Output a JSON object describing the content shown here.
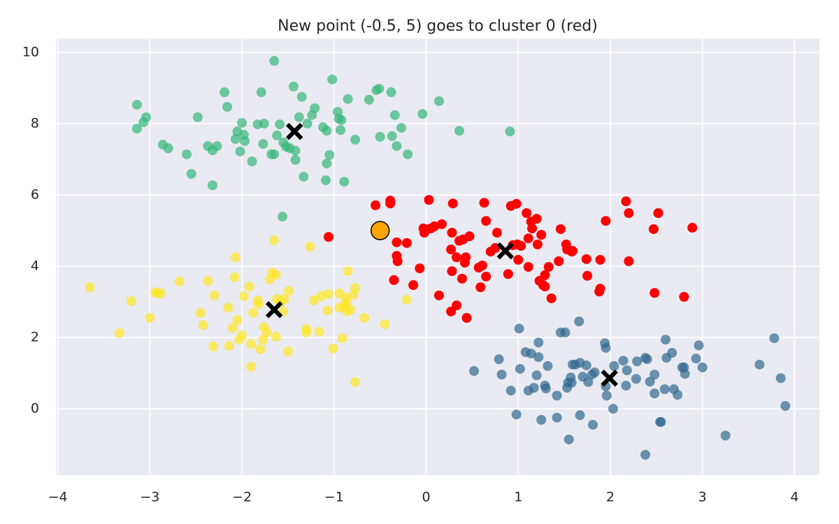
{
  "chart_data": {
    "type": "scatter",
    "title": "New point (-0.5, 5) goes to cluster 0 (red)",
    "xlim": [
      -4.02,
      4.27
    ],
    "ylim": [
      -1.86,
      10.39
    ],
    "xticks": [
      {
        "value": -4,
        "label": "−4"
      },
      {
        "value": -3,
        "label": "−3"
      },
      {
        "value": -2,
        "label": "−2"
      },
      {
        "value": -1,
        "label": "−1"
      },
      0,
      1,
      2,
      3,
      4
    ],
    "yticks": [
      0,
      2,
      4,
      6,
      8,
      10
    ],
    "grid": true,
    "facecolor": "#eaeaf2",
    "series": [
      {
        "color": "#35b779",
        "alpha": 0.7,
        "marker": "circle",
        "x": [
          -3.14,
          -3.14,
          -3.07,
          -3.04,
          -2.86,
          -2.8,
          -2.6,
          -2.55,
          -2.48,
          -2.37,
          -2.32,
          -2.27,
          -2.32,
          -2.19,
          -2.16,
          -2.07,
          -2.05,
          -2.0,
          -1.98,
          -2.02,
          -1.97,
          -1.89,
          -1.83,
          -1.79,
          -1.77,
          -1.76,
          -1.68,
          -1.65,
          -1.62,
          -1.59,
          -1.55,
          -1.52,
          -1.48,
          -1.44,
          -1.42,
          -1.42,
          -1.38,
          -1.35,
          -1.33,
          -1.29,
          -1.24,
          -1.21,
          -1.12,
          -1.08,
          -1.08,
          -1.09,
          -1.05,
          -1.02,
          -0.96,
          -0.95,
          -0.93,
          -0.92,
          -0.89,
          -0.85,
          -0.77,
          -0.62,
          -0.54,
          -0.51,
          -0.5,
          -0.38,
          -0.37,
          -0.34,
          -0.32,
          -0.27,
          -0.2,
          -0.04,
          0.14,
          0.36,
          0.91,
          -1.56,
          -1.65
        ],
        "y": [
          8.53,
          7.86,
          8.04,
          8.18,
          7.41,
          7.31,
          7.14,
          6.59,
          8.18,
          7.37,
          7.25,
          7.37,
          6.27,
          8.88,
          8.47,
          7.57,
          7.78,
          8.02,
          7.69,
          7.22,
          7.51,
          6.94,
          7.98,
          8.88,
          7.43,
          8.0,
          7.14,
          9.76,
          7.67,
          7.98,
          7.47,
          7.35,
          7.31,
          9.04,
          7.24,
          6.98,
          8.18,
          8.75,
          6.51,
          8.0,
          8.24,
          8.43,
          7.9,
          7.8,
          6.88,
          6.41,
          7.12,
          9.24,
          8.33,
          8.14,
          7.82,
          8.1,
          6.37,
          8.69,
          7.55,
          8.67,
          8.94,
          8.98,
          7.63,
          8.88,
          7.65,
          8.24,
          7.37,
          7.88,
          7.14,
          8.27,
          8.63,
          7.8,
          7.78,
          5.39,
          7.14
        ]
      },
      {
        "color": "#fde725",
        "alpha": 0.7,
        "marker": "circle",
        "x": [
          -3.65,
          -3.33,
          -3.2,
          -3.0,
          -2.94,
          -2.92,
          -2.88,
          -2.68,
          -2.45,
          -2.42,
          -2.37,
          -2.31,
          -2.3,
          -2.14,
          -2.15,
          -2.1,
          -2.08,
          -2.07,
          -2.05,
          -2.03,
          -2.0,
          -1.98,
          -1.92,
          -1.9,
          -1.9,
          -1.88,
          -1.83,
          -1.82,
          -1.8,
          -1.76,
          -1.77,
          -1.73,
          -1.7,
          -1.67,
          -1.65,
          -1.63,
          -1.63,
          -1.62,
          -1.58,
          -1.55,
          -1.54,
          -1.5,
          -1.49,
          -1.3,
          -1.3,
          -1.26,
          -1.22,
          -1.16,
          -1.14,
          -1.07,
          -1.06,
          -1.01,
          -0.94,
          -0.91,
          -0.94,
          -0.89,
          -0.88,
          -0.86,
          -0.85,
          -0.86,
          -0.82,
          -0.79,
          -0.77,
          -0.77,
          -0.67,
          -0.45,
          -0.21
        ],
        "y": [
          3.41,
          2.12,
          3.02,
          2.55,
          3.27,
          3.24,
          3.24,
          3.57,
          2.69,
          2.35,
          3.59,
          1.75,
          3.18,
          1.76,
          2.84,
          2.27,
          3.69,
          4.25,
          2.49,
          1.94,
          2.06,
          3.16,
          3.43,
          1.82,
          1.18,
          2.69,
          3.04,
          2.94,
          1.67,
          2.29,
          1.94,
          2.14,
          3.63,
          3.82,
          4.73,
          3.76,
          2.02,
          3.08,
          3.0,
          2.73,
          3.08,
          1.61,
          3.31,
          2.24,
          2.14,
          4.55,
          3.04,
          2.16,
          3.16,
          2.76,
          3.22,
          1.69,
          2.84,
          1.98,
          3.24,
          2.88,
          3.12,
          2.98,
          3.86,
          2.73,
          2.78,
          3.2,
          3.39,
          0.75,
          2.55,
          2.37,
          3.06
        ]
      },
      {
        "color": "#ff0000",
        "alpha": 1,
        "marker": "circle",
        "x": [
          -1.06,
          -0.55,
          -0.39,
          -0.39,
          -0.35,
          -0.32,
          -0.32,
          -0.31,
          -0.21,
          -0.14,
          -0.07,
          -0.03,
          -0.02,
          0.03,
          0.05,
          0.09,
          0.14,
          0.17,
          0.27,
          0.27,
          0.28,
          0.28,
          0.29,
          0.33,
          0.33,
          0.36,
          0.39,
          0.4,
          0.42,
          0.43,
          0.44,
          0.47,
          0.57,
          0.59,
          0.61,
          0.63,
          0.65,
          0.65,
          0.7,
          0.75,
          0.77,
          0.89,
          0.92,
          0.94,
          0.98,
          0.99,
          1.0,
          1.03,
          1.09,
          1.11,
          1.11,
          1.14,
          1.15,
          1.2,
          1.21,
          1.23,
          1.25,
          1.27,
          1.29,
          1.29,
          1.33,
          1.36,
          1.44,
          1.46,
          1.52,
          1.53,
          1.58,
          1.59,
          1.74,
          1.75,
          1.88,
          1.89,
          1.89,
          1.95,
          2.17,
          2.2,
          2.2,
          2.47,
          2.48,
          2.52,
          2.8,
          2.89
        ],
        "y": [
          4.82,
          5.71,
          5.84,
          5.76,
          3.61,
          4.67,
          4.29,
          4.14,
          4.65,
          3.47,
          3.94,
          5.06,
          4.94,
          5.86,
          5.06,
          5.12,
          3.18,
          5.18,
          4.47,
          2.73,
          4.94,
          3.86,
          5.76,
          4.25,
          2.9,
          4.71,
          3.65,
          4.75,
          4.1,
          4.25,
          2.55,
          4.84,
          3.96,
          3.41,
          4.02,
          5.78,
          5.27,
          3.71,
          4.41,
          4.51,
          4.94,
          3.78,
          5.69,
          4.59,
          5.75,
          4.61,
          4.18,
          4.57,
          5.49,
          4.78,
          3.98,
          5.25,
          5.06,
          5.33,
          4.61,
          3.59,
          4.88,
          3.47,
          3.43,
          3.75,
          3.98,
          3.1,
          4.14,
          5.04,
          4.61,
          4.47,
          4.41,
          4.43,
          4.2,
          3.73,
          3.29,
          3.37,
          4.18,
          5.27,
          5.82,
          4.14,
          5.49,
          5.04,
          3.25,
          5.49,
          3.14,
          5.08
        ]
      },
      {
        "color": "#31688e",
        "alpha": 0.7,
        "marker": "circle",
        "x": [
          0.52,
          0.79,
          0.82,
          0.92,
          0.98,
          1.01,
          1.02,
          1.08,
          1.11,
          1.14,
          1.17,
          1.2,
          1.22,
          1.22,
          1.25,
          1.29,
          1.3,
          1.32,
          1.42,
          1.42,
          1.46,
          1.51,
          1.53,
          1.54,
          1.55,
          1.57,
          1.58,
          1.59,
          1.62,
          1.66,
          1.67,
          1.67,
          1.7,
          1.74,
          1.76,
          1.8,
          1.81,
          1.83,
          1.94,
          1.95,
          1.95,
          1.96,
          2.03,
          2.04,
          2.17,
          2.18,
          2.14,
          2.29,
          2.28,
          2.38,
          2.4,
          2.43,
          2.48,
          2.48,
          2.54,
          2.55,
          2.59,
          2.6,
          2.61,
          2.67,
          2.69,
          2.73,
          2.78,
          2.8,
          2.81,
          2.93,
          2.96,
          3.0,
          3.25,
          3.62,
          3.85,
          3.78,
          3.9,
          2.38
        ],
        "y": [
          1.06,
          1.39,
          0.96,
          0.51,
          -0.16,
          2.25,
          1.12,
          1.59,
          0.51,
          1.55,
          0.59,
          0.94,
          1.45,
          1.86,
          -0.31,
          0.65,
          0.57,
          1.2,
          -0.25,
          0.37,
          2.14,
          2.14,
          0.59,
          0.73,
          -0.86,
          0.88,
          0.73,
          1.24,
          1.24,
          2.45,
          1.29,
          -0.18,
          0.9,
          1.22,
          0.75,
          0.96,
          -0.45,
          1.02,
          1.84,
          1.71,
          0.63,
          0.37,
          0.0,
          1.2,
          0.65,
          1.08,
          1.35,
          1.33,
          0.84,
          1.43,
          1.39,
          0.76,
          0.96,
          0.43,
          -0.37,
          -0.37,
          0.55,
          1.94,
          1.43,
          1.57,
          0.55,
          0.39,
          1.16,
          1.16,
          0.98,
          1.41,
          1.78,
          1.16,
          -0.75,
          1.24,
          0.86,
          1.98,
          0.08,
          -1.29
        ]
      },
      {
        "color": "#000000",
        "alpha": 1,
        "marker": "X",
        "x": [
          0.86,
          -1.43,
          1.99,
          -1.65
        ],
        "y": [
          4.43,
          7.78,
          0.86,
          2.78
        ]
      },
      {
        "color": "#ffa500",
        "alpha": 1,
        "marker": "big-circle",
        "edgecolor": "#000000",
        "x": [
          -0.5
        ],
        "y": [
          5
        ]
      }
    ]
  }
}
